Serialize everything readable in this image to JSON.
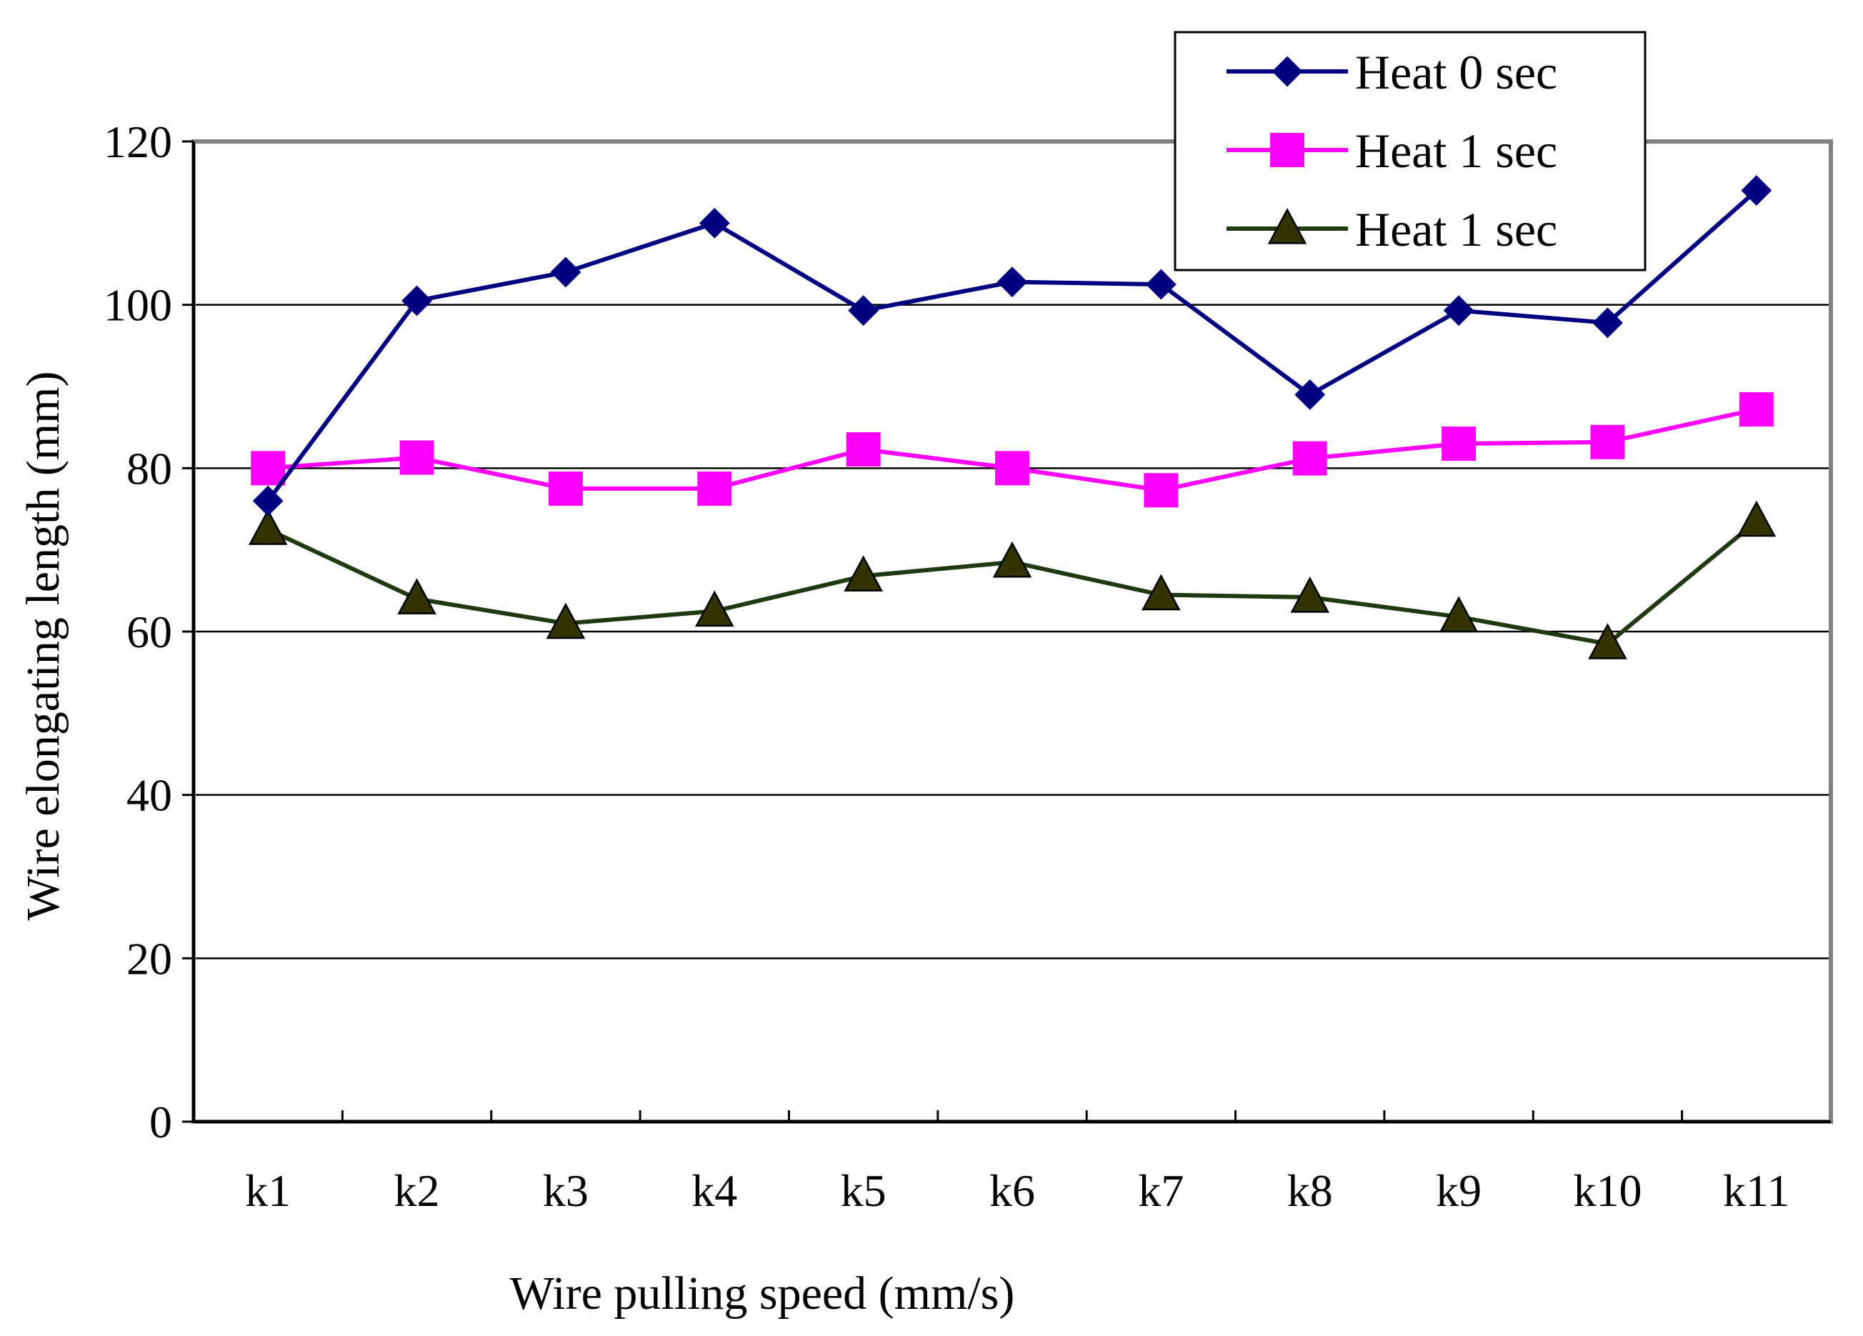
{
  "chart_data": {
    "type": "line",
    "title": "",
    "xlabel": "Wire pulling speed (mm/s)",
    "ylabel": "Wire elongating length (mm)",
    "categories": [
      "k1",
      "k2",
      "k3",
      "k4",
      "k5",
      "k6",
      "k7",
      "k8",
      "k9",
      "k10",
      "k11"
    ],
    "ylim": [
      0,
      120
    ],
    "yticks": [
      "0",
      "20",
      "40",
      "60",
      "80",
      "100",
      "120"
    ],
    "grid": true,
    "legend_position": "top-right",
    "series": [
      {
        "name": "Heat 0 sec",
        "color": "#000080",
        "marker": "diamond",
        "values": [
          76,
          100.5,
          104,
          110,
          99.3,
          102.8,
          102.5,
          89,
          99.3,
          97.8,
          114
        ]
      },
      {
        "name": "Heat 1 sec",
        "color": "#ff00ff",
        "marker": "square",
        "values": [
          80,
          81.3,
          77.5,
          77.5,
          82.3,
          80,
          77.3,
          81.2,
          83,
          83.2,
          87.2
        ]
      },
      {
        "name": "Heat 1 sec",
        "color": "#1f3a10",
        "marker_color": "#333300",
        "marker": "triangle",
        "values": [
          72.5,
          64,
          61,
          62.5,
          66.8,
          68.5,
          64.5,
          64.2,
          61.8,
          58.5,
          73.5
        ]
      }
    ]
  }
}
